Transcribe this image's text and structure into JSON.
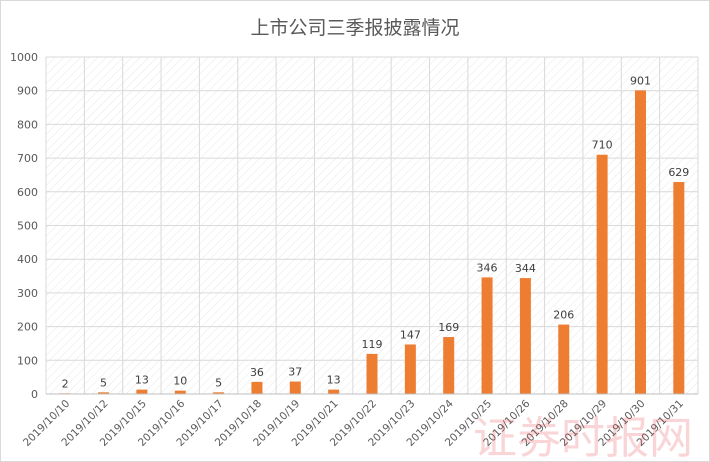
{
  "chart_data": {
    "type": "bar",
    "title": "上市公司三季报披露情况",
    "xlabel": "",
    "ylabel": "",
    "ylim": [
      0,
      1000
    ],
    "yticks": [
      0,
      100,
      200,
      300,
      400,
      500,
      600,
      700,
      800,
      900,
      1000
    ],
    "grid": true,
    "legend": "none",
    "categories": [
      "2019/10/10",
      "2019/10/12",
      "2019/10/15",
      "2019/10/16",
      "2019/10/17",
      "2019/10/18",
      "2019/10/19",
      "2019/10/21",
      "2019/10/22",
      "2019/10/23",
      "2019/10/24",
      "2019/10/25",
      "2019/10/26",
      "2019/10/28",
      "2019/10/29",
      "2019/10/30",
      "2019/10/31"
    ],
    "values": [
      2,
      5,
      13,
      10,
      5,
      36,
      37,
      13,
      119,
      147,
      169,
      346,
      344,
      206,
      710,
      901,
      629
    ],
    "bar_color": "#ed7d31"
  },
  "watermark": "证券时报网"
}
